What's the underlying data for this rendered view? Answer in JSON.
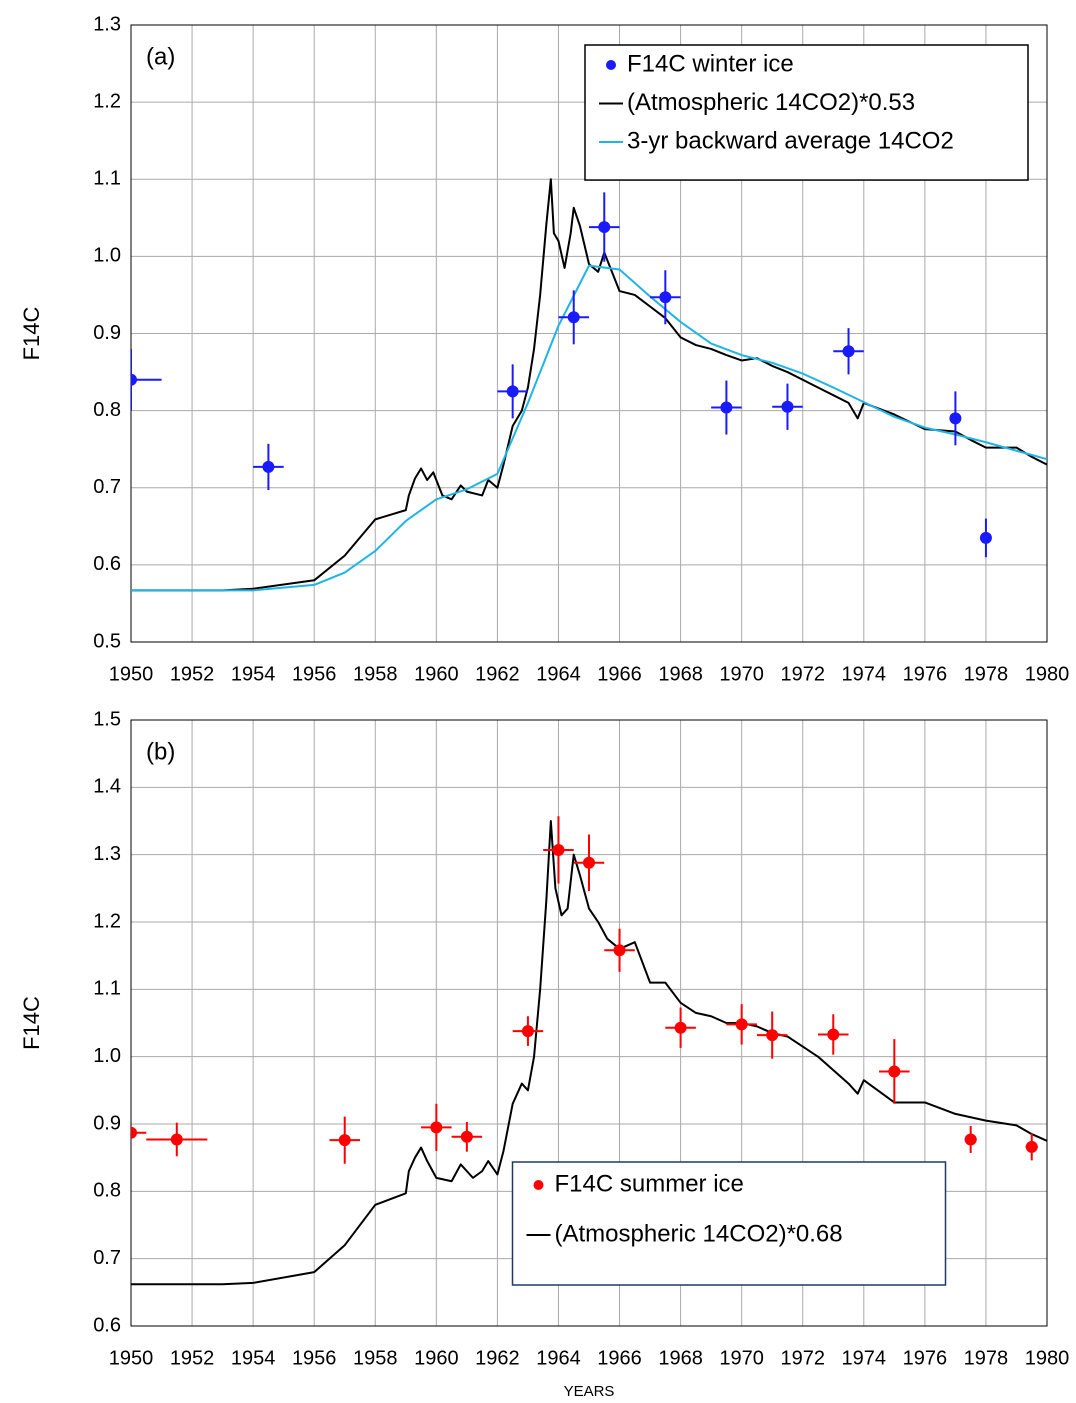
{
  "chart_data": [
    {
      "type": "scatter",
      "annotation": "(a)",
      "ylabel": "F14C",
      "xlim": [
        1950,
        1980
      ],
      "ylim": [
        0.5,
        1.3
      ],
      "xticks": [
        1950,
        1952,
        1954,
        1956,
        1958,
        1960,
        1962,
        1964,
        1966,
        1968,
        1970,
        1972,
        1974,
        1976,
        1978,
        1980
      ],
      "yticks": [
        0.5,
        0.6,
        0.7,
        0.8,
        0.9,
        {
          "value": 1,
          "label": "1.0"
        },
        1.1,
        1.2,
        1.3
      ],
      "grid": true,
      "legend": "upper right",
      "series": [
        {
          "name": "F14C winter ice",
          "color": "#1a1aff",
          "style": "points",
          "x": [
            1950.0,
            1954.5,
            1962.5,
            1964.5,
            1965.5,
            1967.5,
            1969.5,
            1971.5,
            1973.5,
            1977.0,
            1978.0
          ],
          "values": [
            0.84,
            0.727,
            0.825,
            0.921,
            1.038,
            0.947,
            0.804,
            0.805,
            0.877,
            0.79,
            0.635
          ],
          "xerr": [
            1.0,
            0.5,
            0.5,
            0.5,
            0.5,
            0.5,
            0.5,
            0.5,
            0.5,
            0,
            0
          ],
          "yerr": [
            0.04,
            0.03,
            0.035,
            0.035,
            0.045,
            0.035,
            0.035,
            0.03,
            0.03,
            0.035,
            0.025
          ]
        },
        {
          "name": "(Atmospheric 14CO2)*0.53",
          "color": "#000000",
          "style": "line",
          "x": [
            1950,
            1953,
            1954,
            1956,
            1957,
            1958,
            1959,
            1959.1,
            1959.3,
            1959.5,
            1959.7,
            1959.9,
            1960.2,
            1960.5,
            1960.8,
            1961,
            1961.5,
            1961.7,
            1962,
            1962.2,
            1962.5,
            1962.8,
            1963,
            1963.2,
            1963.4,
            1963.6,
            1963.75,
            1963.85,
            1964,
            1964.2,
            1964.4,
            1964.5,
            1964.7,
            1965,
            1965.3,
            1965.5,
            1965.8,
            1966,
            1966.5,
            1967,
            1967.5,
            1968,
            1968.5,
            1969,
            1969.5,
            1970,
            1970.5,
            1971,
            1971.5,
            1972,
            1972.5,
            1973,
            1973.5,
            1973.8,
            1974,
            1975,
            1976,
            1977,
            1977.5,
            1978,
            1979,
            1979.5,
            1980
          ],
          "values": [
            0.567,
            0.567,
            0.569,
            0.58,
            0.612,
            0.659,
            0.671,
            0.69,
            0.712,
            0.725,
            0.71,
            0.72,
            0.69,
            0.685,
            0.703,
            0.695,
            0.69,
            0.71,
            0.7,
            0.73,
            0.78,
            0.8,
            0.83,
            0.88,
            0.95,
            1.04,
            1.1,
            1.03,
            1.02,
            0.985,
            1.03,
            1.063,
            1.04,
            0.99,
            0.98,
            1.005,
            0.975,
            0.955,
            0.95,
            0.935,
            0.92,
            0.895,
            0.885,
            0.88,
            0.872,
            0.865,
            0.868,
            0.858,
            0.85,
            0.84,
            0.83,
            0.82,
            0.81,
            0.79,
            0.81,
            0.795,
            0.776,
            0.773,
            0.762,
            0.752,
            0.752,
            0.74,
            0.73
          ]
        },
        {
          "name": "3-yr backward average 14CO2",
          "color": "#1fb4e6",
          "style": "line",
          "x": [
            1950,
            1953,
            1954,
            1956,
            1957,
            1958,
            1959,
            1960,
            1961,
            1962,
            1963,
            1964,
            1965,
            1966,
            1967,
            1968,
            1969,
            1970,
            1971,
            1972,
            1973,
            1974,
            1975,
            1976,
            1977,
            1978,
            1979,
            1980
          ],
          "values": [
            0.567,
            0.567,
            0.567,
            0.574,
            0.59,
            0.618,
            0.657,
            0.685,
            0.698,
            0.718,
            0.81,
            0.91,
            0.988,
            0.983,
            0.948,
            0.915,
            0.887,
            0.872,
            0.862,
            0.848,
            0.83,
            0.811,
            0.792,
            0.778,
            0.769,
            0.759,
            0.748,
            0.737
          ]
        }
      ]
    },
    {
      "type": "scatter",
      "annotation": "(b)",
      "ylabel": "F14C",
      "xlabel": "YEARS",
      "xlim": [
        1950,
        1980
      ],
      "ylim": [
        0.6,
        1.5
      ],
      "xticks": [
        1950,
        1952,
        1954,
        1956,
        1958,
        1960,
        1962,
        1964,
        1966,
        1968,
        1970,
        1972,
        1974,
        1976,
        1978,
        1980
      ],
      "yticks": [
        0.6,
        0.7,
        0.8,
        0.9,
        {
          "value": 1,
          "label": "1.0"
        },
        1.1,
        1.2,
        1.3,
        1.4,
        1.5
      ],
      "grid": true,
      "legend": "lower center",
      "series": [
        {
          "name": "F14C summer ice",
          "color": "#ff0000",
          "style": "points",
          "x": [
            1950.0,
            1951.5,
            1957,
            1960,
            1961,
            1963,
            1964,
            1965,
            1966,
            1968,
            1970,
            1971,
            1973,
            1975,
            1977.5,
            1979.5
          ],
          "values": [
            0.887,
            0.877,
            0.876,
            0.895,
            0.881,
            1.038,
            1.307,
            1.288,
            1.158,
            1.043,
            1.048,
            1.032,
            1.033,
            0.978,
            0.877,
            0.866
          ],
          "xerr": [
            0.5,
            1.0,
            0.5,
            0.5,
            0.5,
            0.5,
            0.5,
            0.5,
            0.5,
            0.5,
            0.5,
            0.5,
            0.5,
            0.5,
            0.2,
            0.2
          ],
          "yerr": [
            0,
            0.025,
            0.035,
            0.035,
            0.022,
            0.022,
            0.05,
            0.042,
            0.032,
            0.03,
            0.03,
            0.035,
            0.03,
            0.048,
            0.02,
            0.02
          ]
        },
        {
          "name": "(Atmospheric 14CO2)*0.68",
          "color": "#000000",
          "style": "line",
          "x": [
            1950,
            1953,
            1954,
            1956,
            1957,
            1958,
            1959,
            1959.1,
            1959.3,
            1959.5,
            1959.7,
            1960,
            1960.5,
            1960.8,
            1961.2,
            1961.5,
            1961.7,
            1962,
            1962.2,
            1962.5,
            1962.8,
            1963,
            1963.2,
            1963.4,
            1963.6,
            1963.75,
            1963.9,
            1964.1,
            1964.3,
            1964.5,
            1964.7,
            1965,
            1965.3,
            1965.6,
            1966,
            1966.5,
            1967,
            1967.5,
            1968,
            1968.5,
            1969,
            1969.5,
            1970,
            1970.5,
            1971,
            1971.5,
            1972,
            1972.5,
            1973,
            1973.5,
            1973.8,
            1974,
            1975,
            1976,
            1977,
            1978,
            1979,
            1979.5,
            1980
          ],
          "values": [
            0.662,
            0.662,
            0.664,
            0.68,
            0.72,
            0.78,
            0.797,
            0.83,
            0.85,
            0.865,
            0.845,
            0.82,
            0.815,
            0.84,
            0.82,
            0.83,
            0.845,
            0.825,
            0.86,
            0.93,
            0.96,
            0.95,
            1.0,
            1.1,
            1.23,
            1.35,
            1.25,
            1.21,
            1.22,
            1.3,
            1.27,
            1.22,
            1.2,
            1.175,
            1.16,
            1.17,
            1.11,
            1.11,
            1.08,
            1.065,
            1.06,
            1.05,
            1.05,
            1.045,
            1.035,
            1.03,
            1.015,
            1.0,
            0.98,
            0.96,
            0.945,
            0.965,
            0.932,
            0.932,
            0.915,
            0.905,
            0.898,
            0.885,
            0.875
          ]
        }
      ]
    }
  ]
}
